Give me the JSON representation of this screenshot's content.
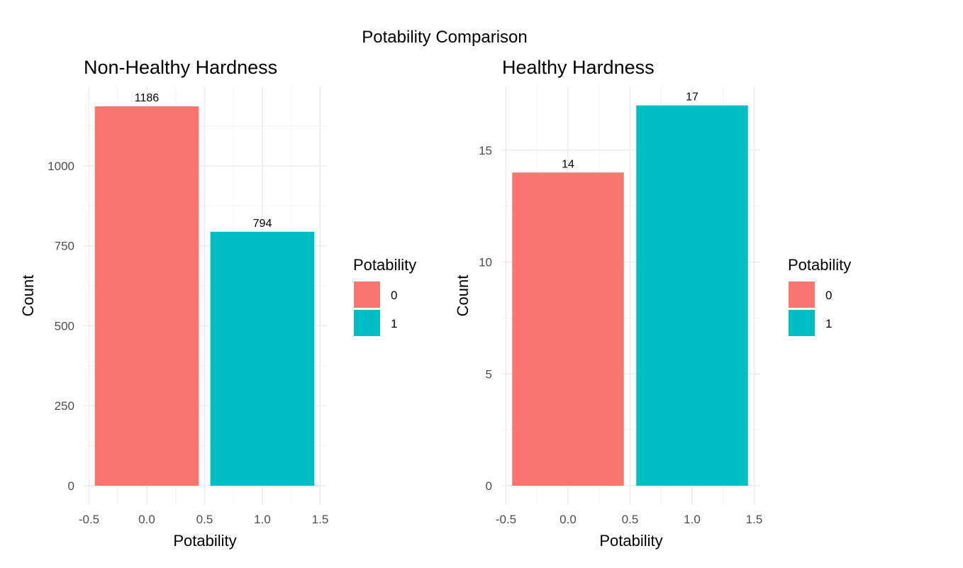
{
  "chart_data": {
    "title": "Potability Comparison",
    "panels": [
      {
        "type": "bar",
        "title": "Non-Healthy Hardness",
        "xlabel": "Potability",
        "ylabel": "Count",
        "x": [
          0,
          1
        ],
        "values": [
          1186,
          794
        ],
        "colors": [
          "#F8766D",
          "#00BFC4"
        ],
        "xlim": [
          -0.5,
          1.5
        ],
        "xticks": [
          "-0.5",
          "0.0",
          "0.5",
          "1.0",
          "1.5"
        ],
        "yticks": [
          "0",
          "250",
          "500",
          "750",
          "1000"
        ],
        "ylim": [
          0,
          1186
        ],
        "legend": {
          "title": "Potability",
          "position": "right",
          "items": [
            "0",
            "1"
          ]
        }
      },
      {
        "type": "bar",
        "title": "Healthy Hardness",
        "xlabel": "Potability",
        "ylabel": "Count",
        "x": [
          0,
          1
        ],
        "values": [
          14,
          17
        ],
        "colors": [
          "#F8766D",
          "#00BFC4"
        ],
        "xlim": [
          -0.5,
          1.5
        ],
        "xticks": [
          "-0.5",
          "0.0",
          "0.5",
          "1.0",
          "1.5"
        ],
        "yticks": [
          "0",
          "5",
          "10",
          "15"
        ],
        "ylim": [
          0,
          17
        ],
        "legend": {
          "title": "Potability",
          "position": "right",
          "items": [
            "0",
            "1"
          ]
        }
      }
    ]
  }
}
